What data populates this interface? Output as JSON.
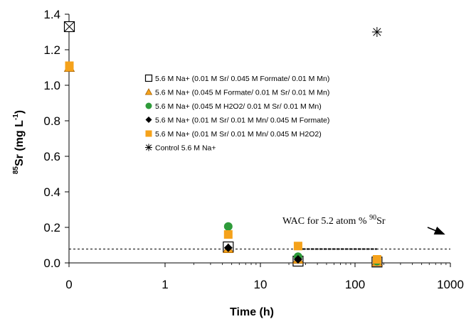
{
  "chart_data": {
    "type": "scatter",
    "xlabel": "Time (h)",
    "ylabel_sup": "85",
    "ylabel_main": "Sr (mg L",
    "ylabel_exp": "-1",
    "ylabel_close": ")",
    "xscale": "log",
    "xlim": [
      0,
      1000
    ],
    "ylim": [
      0,
      1.4
    ],
    "x_ticks": [
      {
        "value": 0,
        "label": "0"
      },
      {
        "value": 1,
        "label": "1"
      },
      {
        "value": 10,
        "label": "10"
      },
      {
        "value": 100,
        "label": "100"
      },
      {
        "value": 1000,
        "label": "1000"
      }
    ],
    "y_ticks": [
      {
        "value": 0,
        "label": "0.0"
      },
      {
        "value": 0.2,
        "label": "0.2"
      },
      {
        "value": 0.4,
        "label": "0.4"
      },
      {
        "value": 0.6,
        "label": "0.6"
      },
      {
        "value": 0.8,
        "label": "0.8"
      },
      {
        "value": 1.0,
        "label": "1.0"
      },
      {
        "value": 1.2,
        "label": "1.2"
      },
      {
        "value": 1.4,
        "label": "1.4"
      }
    ],
    "grid": false,
    "legend_position": "center",
    "series": [
      {
        "name": "5.6 M Na+ (0.01 M Sr/ 0.045 M Formate/ 0.01 M Mn)",
        "marker": "open-square",
        "color": "#000000",
        "x": [
          0,
          4.6,
          25,
          170
        ],
        "y": [
          1.33,
          0.09,
          0.01,
          0.005
        ]
      },
      {
        "name": "5.6 M Na+ (0.045 M Formate/ 0.01 M Sr/ 0.01 M Mn)",
        "marker": "triangle",
        "color": "#F5A21B",
        "x": [
          0,
          4.6,
          25,
          170
        ],
        "y": [
          1.1,
          0.08,
          0.02,
          0.005
        ]
      },
      {
        "name": "5.6 M Na+ (0.045 M H2O2/ 0.01 M Sr/ 0.01 M Mn)",
        "marker": "circle",
        "color": "#2E9B3A",
        "x": [
          0,
          4.6,
          25,
          170
        ],
        "y": [
          1.11,
          0.205,
          0.035,
          0.01
        ]
      },
      {
        "name": "5.6 M Na+ (0.01 M Sr/ 0.01 M Mn/ 0.045 M Formate)",
        "marker": "diamond",
        "color": "#000000",
        "x": [
          4.6,
          25
        ],
        "y": [
          0.085,
          0.02
        ]
      },
      {
        "name": "5.6 M Na+ (0.01 M Sr/ 0.01 M Mn/ 0.045 M H2O2)",
        "marker": "filled-square",
        "color": "#F5A21B",
        "x": [
          0,
          4.6,
          25,
          170
        ],
        "y": [
          1.11,
          0.16,
          0.095,
          0.02
        ]
      },
      {
        "name": "Control 5.6 M Na+",
        "marker": "star",
        "color": "#000000",
        "x": [
          170
        ],
        "y": [
          1.3
        ]
      }
    ],
    "reference_line": {
      "y": 0.078,
      "style": "dashed",
      "color": "#000000"
    },
    "annotation": {
      "text_pre": "WAC for 5.2 atom % ",
      "text_sup": "90",
      "text_post": "Sr",
      "arrow": true
    }
  }
}
